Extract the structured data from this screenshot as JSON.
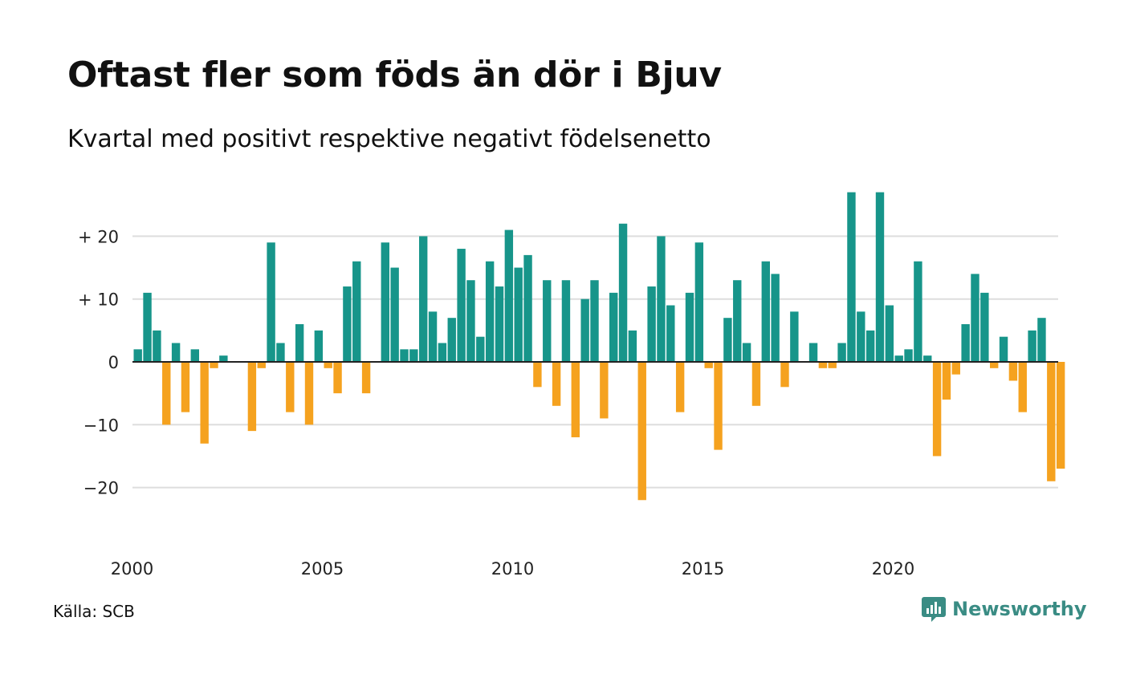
{
  "header": {
    "title": "Oftast fler som föds än dör i Bjuv",
    "subtitle": "Kvartal med positivt respektive negativt födelsenetto"
  },
  "footer": {
    "source": "Källa: SCB",
    "brand": "Newsworthy",
    "brand_icon": "newsworthy-chat-chart-icon"
  },
  "colors": {
    "positive": "#17958a",
    "negative": "#f5a21f",
    "grid": "#dddddd",
    "zero_line": "#222222",
    "brand": "#3a8c84"
  },
  "chart_data": {
    "type": "bar",
    "title": "Oftast fler som föds än dör i Bjuv",
    "subtitle": "Kvartal med positivt respektive negativt födelsenetto",
    "x_start": "2000-Q1",
    "x_ticks": [
      "2000",
      "2005",
      "2010",
      "2015",
      "2020"
    ],
    "y_ticks": [
      {
        "value": 20,
        "label": "+ 20"
      },
      {
        "value": 10,
        "label": "+ 10"
      },
      {
        "value": 0,
        "label": "0"
      },
      {
        "value": -10,
        "label": "−10"
      },
      {
        "value": -20,
        "label": "−20"
      }
    ],
    "ylim": [
      -27,
      27
    ],
    "grid": true,
    "values": [
      2,
      11,
      5,
      -10,
      3,
      -8,
      2,
      -13,
      -1,
      1,
      0,
      0,
      -11,
      -1,
      19,
      3,
      -8,
      6,
      -10,
      5,
      -1,
      -5,
      12,
      16,
      -5,
      0,
      19,
      15,
      2,
      2,
      20,
      8,
      3,
      7,
      18,
      13,
      4,
      16,
      12,
      21,
      15,
      17,
      -4,
      13,
      -7,
      13,
      -12,
      10,
      13,
      -9,
      11,
      22,
      5,
      -22,
      12,
      20,
      9,
      -8,
      11,
      19,
      -1,
      -14,
      7,
      13,
      3,
      -7,
      16,
      14,
      -4,
      8,
      0,
      3,
      -1,
      -1,
      3,
      27,
      8,
      5,
      27,
      9,
      1,
      2,
      16,
      1,
      -15,
      -6,
      -2,
      6,
      14,
      11,
      -1,
      4,
      -3,
      -8,
      5,
      7,
      -19,
      -17
    ]
  }
}
